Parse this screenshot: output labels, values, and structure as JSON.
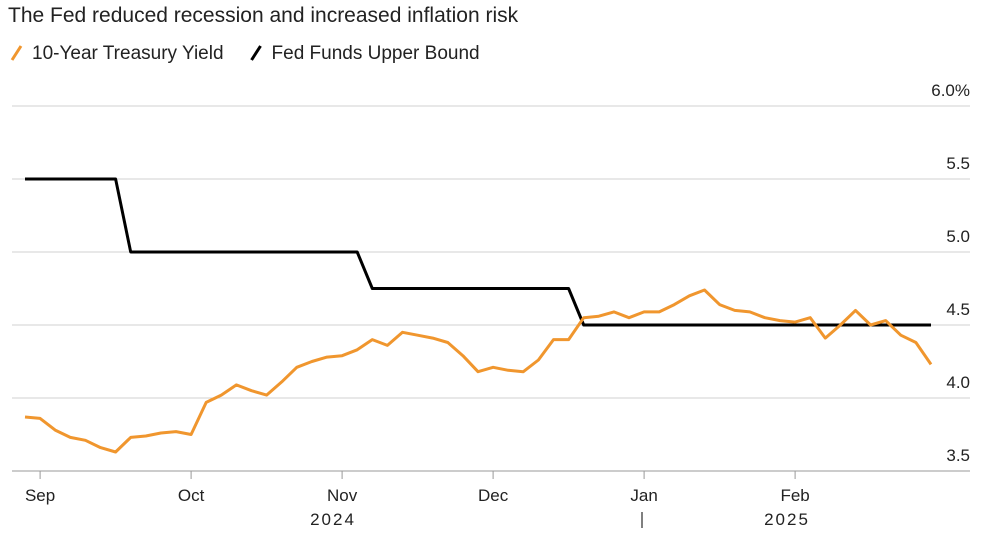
{
  "chart_data": {
    "type": "line",
    "title": "The Fed reduced recession and increased inflation risk",
    "categories": [
      null,
      "Sep",
      null,
      null,
      null,
      null,
      null,
      null,
      null,
      null,
      null,
      "Oct",
      null,
      null,
      null,
      null,
      null,
      null,
      null,
      null,
      null,
      "Nov",
      null,
      null,
      null,
      null,
      null,
      null,
      null,
      null,
      null,
      "Dec",
      null,
      null,
      null,
      null,
      null,
      null,
      null,
      null,
      null,
      "Jan",
      null,
      null,
      null,
      null,
      null,
      null,
      null,
      null,
      null,
      "Feb",
      null,
      null,
      null,
      null,
      null,
      null,
      null,
      null,
      null
    ],
    "x_years": [
      "2024",
      "2025"
    ],
    "series": [
      {
        "name": "10-Year Treasury Yield",
        "color": "#f0962e",
        "values": [
          3.87,
          3.86,
          3.78,
          3.73,
          3.71,
          3.66,
          3.63,
          3.73,
          3.74,
          3.76,
          3.77,
          3.75,
          3.97,
          4.02,
          4.09,
          4.05,
          4.02,
          4.11,
          4.21,
          4.25,
          4.28,
          4.29,
          4.33,
          4.4,
          4.36,
          4.45,
          4.43,
          4.41,
          4.38,
          4.29,
          4.18,
          4.21,
          4.19,
          4.18,
          4.26,
          4.4,
          4.4,
          4.55,
          4.56,
          4.59,
          4.55,
          4.59,
          4.59,
          4.64,
          4.7,
          4.74,
          4.64,
          4.6,
          4.59,
          4.55,
          4.53,
          4.52,
          4.55,
          4.41,
          4.5,
          4.6,
          4.5,
          4.53,
          4.43,
          4.38,
          4.23
        ]
      },
      {
        "name": "Fed Funds Upper Bound",
        "color": "#000000",
        "values": [
          5.5,
          5.5,
          5.5,
          5.5,
          5.5,
          5.5,
          5.5,
          5.0,
          5.0,
          5.0,
          5.0,
          5.0,
          5.0,
          5.0,
          5.0,
          5.0,
          5.0,
          5.0,
          5.0,
          5.0,
          5.0,
          5.0,
          5.0,
          4.75,
          4.75,
          4.75,
          4.75,
          4.75,
          4.75,
          4.75,
          4.75,
          4.75,
          4.75,
          4.75,
          4.75,
          4.75,
          4.75,
          4.5,
          4.5,
          4.5,
          4.5,
          4.5,
          4.5,
          4.5,
          4.5,
          4.5,
          4.5,
          4.5,
          4.5,
          4.5,
          4.5,
          4.5,
          4.5,
          4.5,
          4.5,
          4.5,
          4.5,
          4.5,
          4.5,
          4.5,
          4.5
        ]
      }
    ],
    "ylim": [
      3.5,
      6.0
    ],
    "yticks": [
      3.5,
      {
        "value": 4,
        "label": "4.0"
      },
      4.5,
      {
        "value": 5,
        "label": "5.0"
      },
      5.5,
      {
        "value": 6,
        "label": "6.0%"
      }
    ],
    "grid": true
  }
}
